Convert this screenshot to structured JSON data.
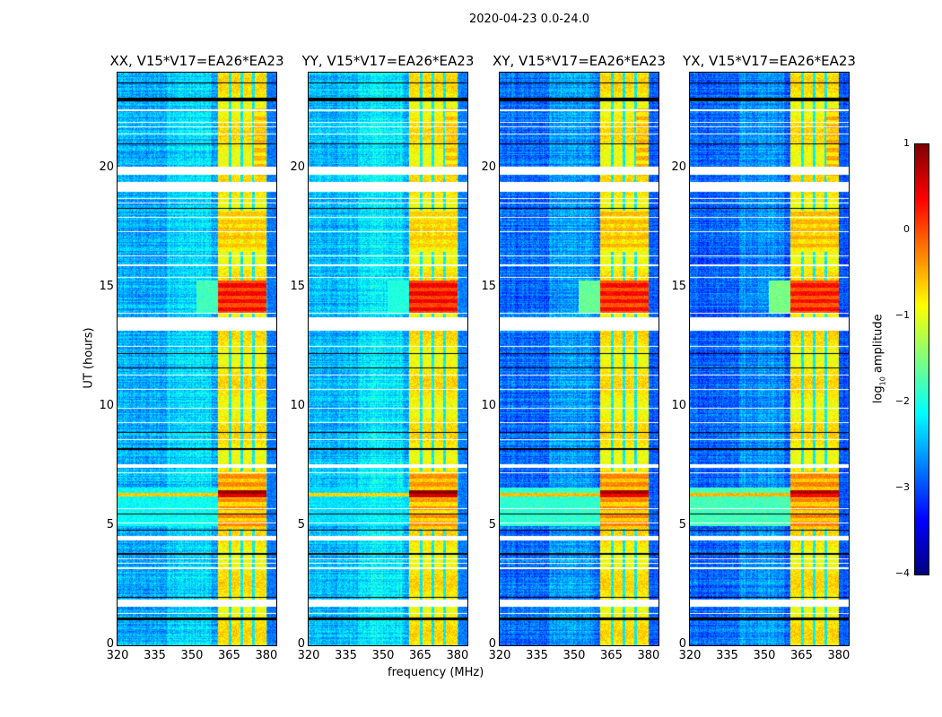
{
  "figure": {
    "suptitle": "2020-04-23 0.0-24.0",
    "xlabel": "frequency (MHz)",
    "ylabel": "UT (hours)"
  },
  "colorbar": {
    "label": "log10 amplitude",
    "label_main": "log",
    "label_sub": "10",
    "label_rest": " amplitude",
    "ticks": [
      "1",
      "0",
      "−1",
      "−2",
      "−3",
      "−4"
    ],
    "tick_values": [
      1,
      0,
      -1,
      -2,
      -3,
      -4
    ],
    "range": [
      -4,
      1
    ],
    "colormap": "jet"
  },
  "chart_data": [
    {
      "type": "heatmap",
      "title": "XX, V15*V17=EA26*EA23",
      "background": -2.9,
      "event_scale": 1.0
    },
    {
      "type": "heatmap",
      "title": "YY, V15*V17=EA26*EA23",
      "background": -2.8,
      "event_scale": 1.1
    },
    {
      "type": "heatmap",
      "title": "XY, V15*V17=EA26*EA23",
      "background": -3.2,
      "event_scale": 0.9
    },
    {
      "type": "heatmap",
      "title": "YX, V15*V17=EA26*EA23",
      "background": -3.25,
      "event_scale": 0.85
    }
  ],
  "shared": {
    "xlim": [
      320,
      384
    ],
    "ylim": [
      0,
      24
    ],
    "xticks": [
      320,
      335,
      350,
      365,
      380
    ],
    "xtick_labels": [
      "320",
      "335",
      "350",
      "365",
      "380"
    ],
    "yticks": [
      0,
      5,
      10,
      15,
      20
    ],
    "ytick_labels": [
      "0",
      "5",
      "10",
      "15",
      "20"
    ],
    "bright_band_mhz": [
      360.5,
      380
    ],
    "band_dividers_mhz": [
      365.3,
      370.1,
      374.9
    ],
    "flagged_hours": [
      [
        19.7,
        20.05
      ],
      [
        19.0,
        19.4
      ],
      [
        13.2,
        13.75
      ],
      [
        7.45,
        7.6
      ],
      [
        4.4,
        4.6
      ],
      [
        1.6,
        1.9
      ],
      [
        22.4,
        22.45
      ],
      [
        21.9,
        21.95
      ],
      [
        21.7,
        21.75
      ],
      [
        21.4,
        21.45
      ],
      [
        18.7,
        18.75
      ],
      [
        18.5,
        18.55
      ],
      [
        17.9,
        17.95
      ],
      [
        17.3,
        17.35
      ],
      [
        16.3,
        16.35
      ],
      [
        15.9,
        15.95
      ],
      [
        15.4,
        15.45
      ],
      [
        13.9,
        13.95
      ],
      [
        12.5,
        12.55
      ],
      [
        11.3,
        11.35
      ],
      [
        10.7,
        10.75
      ],
      [
        9.9,
        9.95
      ],
      [
        9.3,
        9.35
      ],
      [
        8.6,
        8.65
      ],
      [
        7.2,
        7.25
      ],
      [
        5.7,
        5.75
      ],
      [
        5.1,
        5.15
      ],
      [
        3.6,
        3.65
      ],
      [
        3.4,
        3.45
      ],
      [
        3.2,
        3.25
      ],
      [
        1.3,
        1.35
      ]
    ],
    "zero_hours": [
      [
        22.8,
        22.95
      ],
      [
        23.55,
        23.6
      ],
      [
        21.0,
        21.05
      ],
      [
        18.3,
        18.33
      ],
      [
        16.1,
        16.13
      ],
      [
        12.2,
        12.23
      ],
      [
        11.6,
        11.66
      ],
      [
        10.5,
        10.53
      ],
      [
        8.9,
        8.93
      ],
      [
        8.2,
        8.25
      ],
      [
        5.5,
        5.53
      ],
      [
        4.8,
        4.83
      ],
      [
        3.8,
        3.88
      ],
      [
        2.0,
        2.03
      ],
      [
        1.05,
        1.15
      ],
      [
        0.85,
        0.88
      ]
    ],
    "events": [
      {
        "hours": [
          13.9,
          15.3
        ],
        "mhz": [
          360.5,
          380
        ],
        "level": 0.4
      },
      {
        "hours": [
          13.9,
          15.3
        ],
        "mhz": [
          352,
          360.5
        ],
        "level": -1.8
      },
      {
        "hours": [
          6.2,
          6.5
        ],
        "mhz": [
          360.5,
          380
        ],
        "level": 0.9
      },
      {
        "hours": [
          6.25,
          6.4
        ],
        "mhz": [
          320,
          360.5
        ],
        "level": -0.6
      },
      {
        "hours": [
          4.9,
          7.3
        ],
        "mhz": [
          360.5,
          380
        ],
        "level": -0.3
      },
      {
        "hours": [
          5.0,
          6.6
        ],
        "mhz": [
          320,
          360.5
        ],
        "level": -2.1
      },
      {
        "hours": [
          16.5,
          18.2
        ],
        "mhz": [
          360.5,
          380
        ],
        "level": -0.6
      },
      {
        "hours": [
          19.5,
          22.5
        ],
        "mhz": [
          375,
          380
        ],
        "level": -0.5
      }
    ]
  }
}
